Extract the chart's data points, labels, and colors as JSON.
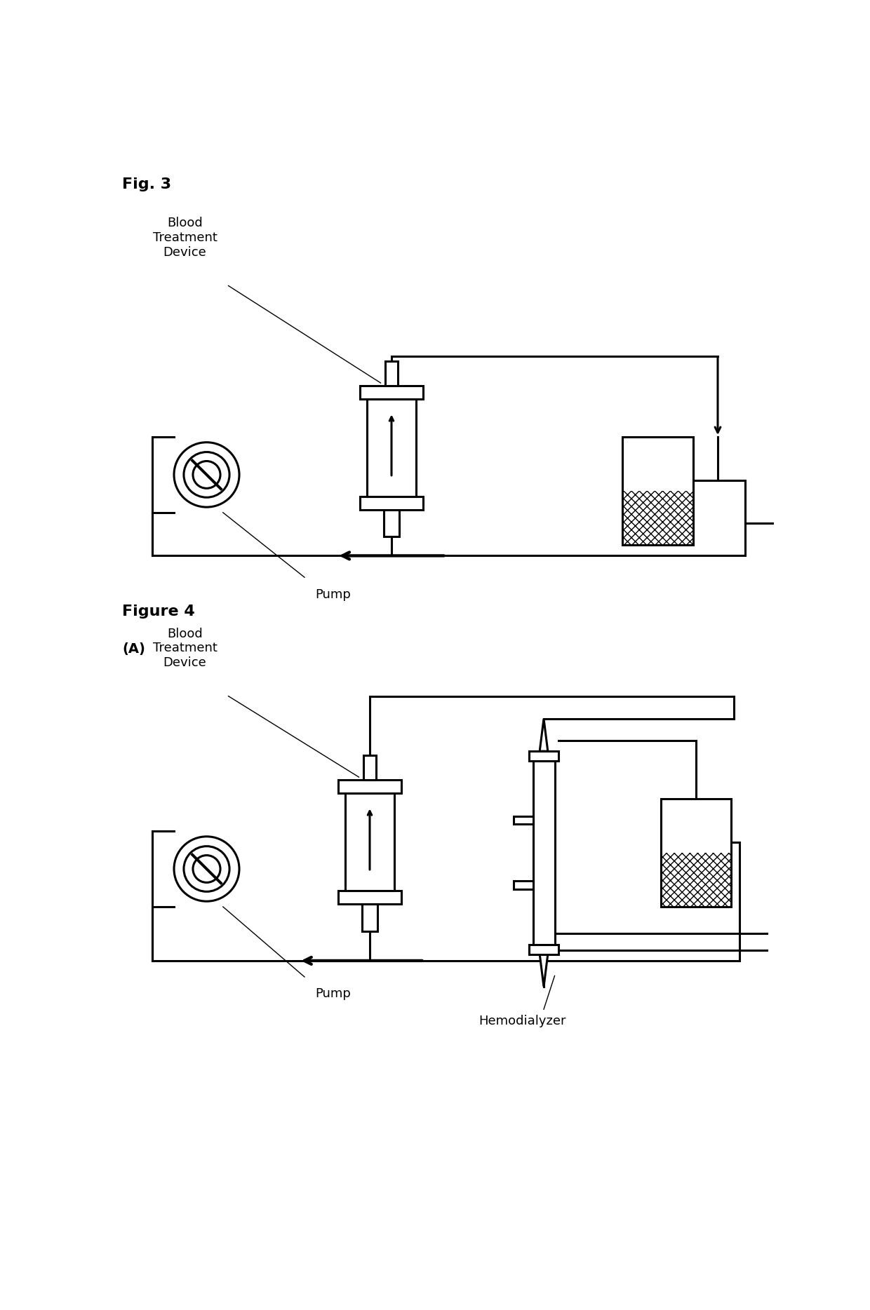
{
  "fig3_title": "Fig. 3",
  "fig4_title": "Figure 4",
  "fig4_subtitle": "(A)",
  "label_blood_treatment": "Blood\nTreatment\nDevice",
  "label_pump": "Pump",
  "label_hemodialyzer": "Hemodialyzer",
  "bg_color": "#ffffff",
  "line_color": "#000000",
  "lw": 2.2,
  "lw_thin": 1.0
}
